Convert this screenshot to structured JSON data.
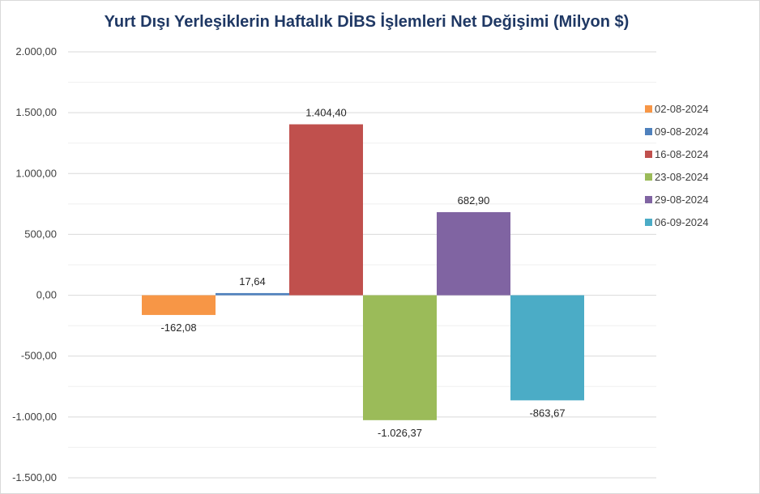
{
  "chart_data": {
    "type": "bar",
    "title": "Yurt Dışı Yerleşiklerin Haftalık DİBS İşlemleri Net Değişimi (Milyon $)",
    "xlabel": "",
    "ylabel": "",
    "ylim": [
      -1500,
      2000
    ],
    "yticks": [
      2000,
      1500,
      1000,
      500,
      0,
      -500,
      -1000,
      -1500
    ],
    "ytick_labels": [
      "2.000,00",
      "1.500,00",
      "1.000,00",
      "500,00",
      "0,00",
      "-500,00",
      "-1.000,00",
      "-1.500,00"
    ],
    "grid": true,
    "legend_position": "right",
    "series": [
      {
        "name": "02-08-2024",
        "value": -162.08,
        "label": "-162,08",
        "color": "#f79646"
      },
      {
        "name": "09-08-2024",
        "value": 17.64,
        "label": "17,64",
        "color": "#4f81bd"
      },
      {
        "name": "16-08-2024",
        "value": 1404.4,
        "label": "1.404,40",
        "color": "#c0504d"
      },
      {
        "name": "23-08-2024",
        "value": -1026.37,
        "label": "-1.026,37",
        "color": "#9bbb59"
      },
      {
        "name": "29-08-2024",
        "value": 682.9,
        "label": "682,90",
        "color": "#8064a2"
      },
      {
        "name": "06-09-2024",
        "value": -863.67,
        "label": "-863,67",
        "color": "#4bacc6"
      }
    ]
  }
}
